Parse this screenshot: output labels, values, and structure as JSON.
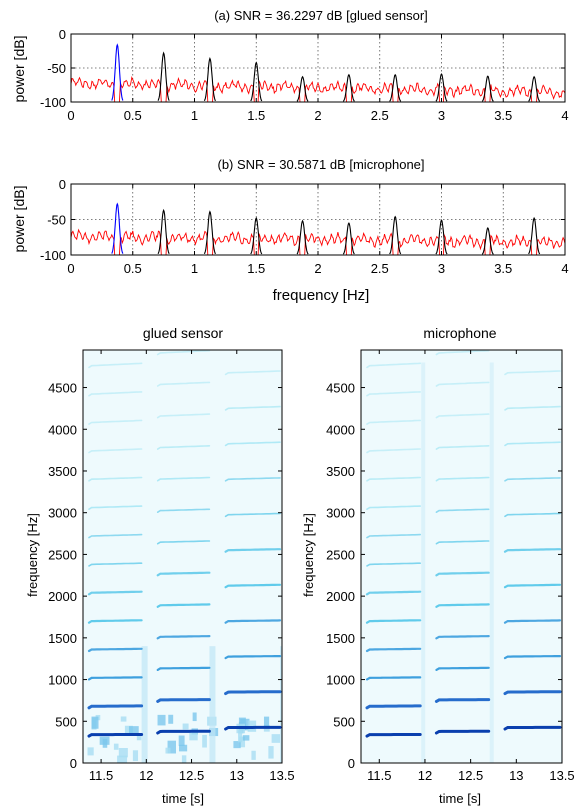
{
  "chart_data": [
    {
      "type": "line",
      "title": "(a)  SNR = 36.2297 dB  [glued sensor]",
      "xlabel": "",
      "ylabel": "power [dB]",
      "xlim": [
        0,
        4
      ],
      "ylim": [
        -100,
        0
      ],
      "x_ticks": [
        0,
        0.5,
        1,
        1.5,
        2,
        2.5,
        3,
        3.5,
        4
      ],
      "y_ticks": [
        0,
        -50,
        -100
      ],
      "grid": true,
      "fundamental": {
        "color": "#0000ff",
        "x": 0.375,
        "peak": -16
      },
      "harmonics": {
        "color": "#000000",
        "x": [
          0.75,
          1.125,
          1.5,
          1.875,
          2.25,
          2.625,
          3.0,
          3.375,
          3.75
        ],
        "peak": [
          -28,
          -36,
          -42,
          -63,
          -60,
          -60,
          -59,
          -62,
          -63
        ]
      },
      "noise": {
        "color": "#ff0000",
        "level_start": -72,
        "level_end": -86
      }
    },
    {
      "type": "line",
      "title": "(b)  SNR = 30.5871 dB  [microphone]",
      "xlabel": "frequency [Hz]",
      "ylabel": "power [dB]",
      "xlim": [
        0,
        4
      ],
      "ylim": [
        -100,
        0
      ],
      "x_ticks": [
        0,
        0.5,
        1,
        1.5,
        2,
        2.5,
        3,
        3.5,
        4
      ],
      "y_ticks": [
        0,
        -50,
        -100
      ],
      "grid": true,
      "fundamental": {
        "color": "#0000ff",
        "x": 0.375,
        "peak": -28
      },
      "harmonics": {
        "color": "#000000",
        "x": [
          0.75,
          1.125,
          1.5,
          1.875,
          2.25,
          2.625,
          3.0,
          3.375,
          3.75
        ],
        "peak": [
          -37,
          -39,
          -48,
          -52,
          -55,
          -46,
          -51,
          -62,
          -48
        ]
      },
      "noise": {
        "color": "#ff0000",
        "level_start": -74,
        "level_end": -82
      }
    },
    {
      "type": "heatmap",
      "title": "glued sensor",
      "xlabel": "time [s]",
      "ylabel": "frequency [Hz]",
      "xlim": [
        11.3,
        13.5
      ],
      "ylim": [
        0,
        4950
      ],
      "x_ticks": [
        11.5,
        12,
        12.5,
        13,
        13.5
      ],
      "y_ticks": [
        0,
        500,
        1000,
        1500,
        2000,
        2500,
        3000,
        3500,
        4000,
        4500
      ],
      "segments": [
        {
          "t0": 11.3,
          "t1": 11.97,
          "f0": 340
        },
        {
          "t0": 12.06,
          "t1": 12.72,
          "f0": 378
        },
        {
          "t0": 12.81,
          "t1": 13.5,
          "f0": 425
        }
      ],
      "harmonic_count": 11,
      "low_frequency_energy": "strong"
    },
    {
      "type": "heatmap",
      "title": "microphone",
      "xlabel": "time [s]",
      "ylabel": "frequency [Hz]",
      "xlim": [
        11.3,
        13.5
      ],
      "ylim": [
        0,
        4950
      ],
      "x_ticks": [
        11.5,
        12,
        12.5,
        13,
        13.5
      ],
      "y_ticks": [
        0,
        500,
        1000,
        1500,
        2000,
        2500,
        3000,
        3500,
        4000,
        4500
      ],
      "segments": [
        {
          "t0": 11.3,
          "t1": 11.97,
          "f0": 340
        },
        {
          "t0": 12.06,
          "t1": 12.72,
          "f0": 378
        },
        {
          "t0": 12.81,
          "t1": 13.5,
          "f0": 425
        }
      ],
      "harmonic_count": 11,
      "low_frequency_energy": "weak"
    }
  ]
}
